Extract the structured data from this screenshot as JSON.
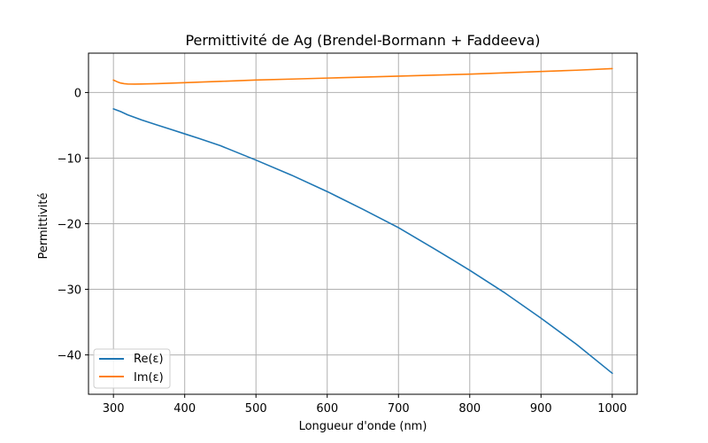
{
  "chart_data": {
    "type": "line",
    "title": "Permittivité de Ag (Brendel-Bormann + Faddeeva)",
    "xlabel": "Longueur d'onde (nm)",
    "ylabel": "Permittivité",
    "xlim": [
      265,
      1035
    ],
    "ylim": [
      -46,
      6
    ],
    "xticks": [
      300,
      400,
      500,
      600,
      700,
      800,
      900,
      1000
    ],
    "yticks": [
      0,
      -10,
      -20,
      -30,
      -40
    ],
    "ytick_labels": [
      "0",
      "−10",
      "−20",
      "−30",
      "−40"
    ],
    "grid": true,
    "legend_position": "lower-left",
    "series": [
      {
        "name": "Re(ε)",
        "color": "#1f77b4",
        "x": [
          300,
          310,
          320,
          340,
          360,
          380,
          400,
          420,
          450,
          500,
          550,
          600,
          650,
          700,
          750,
          800,
          850,
          900,
          950,
          1000
        ],
        "y": [
          -2.5,
          -2.9,
          -3.4,
          -4.2,
          -4.9,
          -5.6,
          -6.3,
          -7.0,
          -8.1,
          -10.3,
          -12.6,
          -15.1,
          -17.8,
          -20.6,
          -23.8,
          -27.1,
          -30.6,
          -34.4,
          -38.4,
          -42.8
        ]
      },
      {
        "name": "Im(ε)",
        "color": "#ff7f0e",
        "x": [
          300,
          305,
          310,
          315,
          320,
          330,
          340,
          360,
          400,
          450,
          500,
          550,
          600,
          650,
          700,
          750,
          800,
          850,
          900,
          950,
          1000
        ],
        "y": [
          1.9,
          1.65,
          1.45,
          1.35,
          1.3,
          1.28,
          1.3,
          1.35,
          1.5,
          1.7,
          1.9,
          2.05,
          2.2,
          2.35,
          2.5,
          2.65,
          2.8,
          3.0,
          3.2,
          3.4,
          3.65
        ]
      }
    ]
  }
}
